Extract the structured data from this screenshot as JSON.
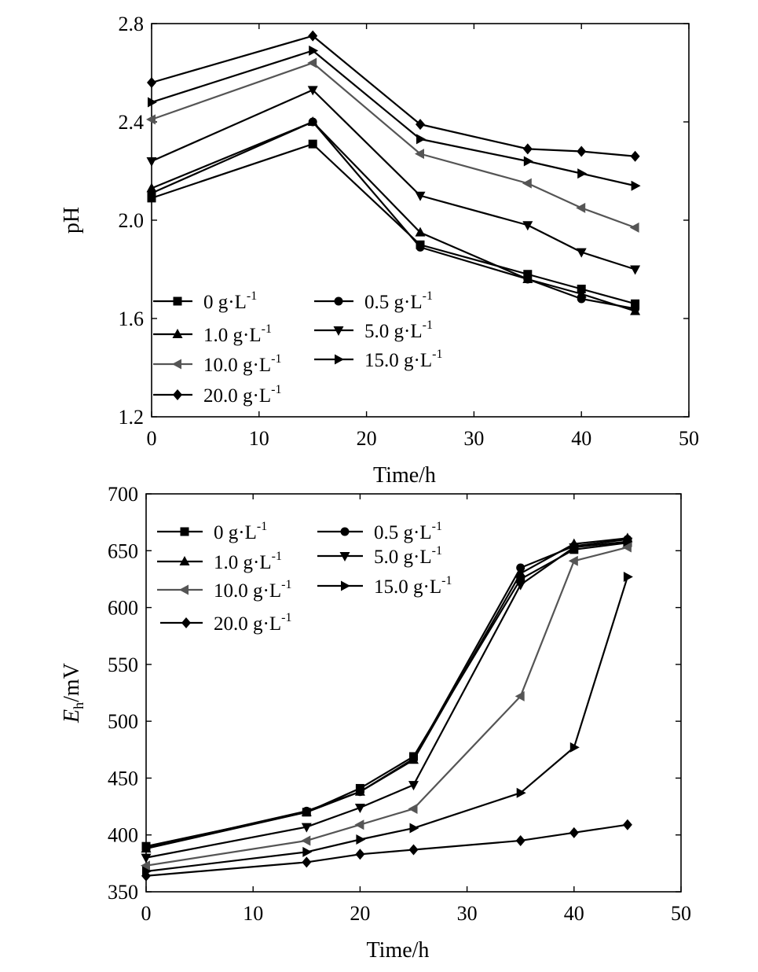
{
  "chart_data": [
    {
      "type": "line",
      "title": "",
      "xlabel": "Time/h",
      "ylabel": "pH",
      "xlim": [
        0,
        50
      ],
      "ylim": [
        1.2,
        2.8
      ],
      "xticks": [
        "0",
        "10",
        "20",
        "30",
        "40",
        "50"
      ],
      "yticks": [
        "1.2",
        "1.6",
        "2.0",
        "2.4",
        "2.8"
      ],
      "grid": false,
      "legend_position": "bottom-left",
      "x": [
        0,
        15,
        25,
        35,
        40,
        45
      ],
      "series": [
        {
          "name": "0 g·L",
          "marker": "square",
          "color": "#000000",
          "values": [
            2.09,
            2.31,
            1.9,
            1.78,
            1.72,
            1.66
          ]
        },
        {
          "name": "0.5 g·L",
          "marker": "circle",
          "color": "#000000",
          "values": [
            2.11,
            2.4,
            1.89,
            1.76,
            1.68,
            1.64
          ]
        },
        {
          "name": "1.0 g·L",
          "marker": "triangle-up",
          "color": "#000000",
          "values": [
            2.13,
            2.4,
            1.95,
            1.76,
            1.7,
            1.63
          ]
        },
        {
          "name": "5.0 g·L",
          "marker": "triangle-down",
          "color": "#000000",
          "values": [
            2.24,
            2.53,
            2.1,
            1.98,
            1.87,
            1.8
          ]
        },
        {
          "name": "10.0 g·L",
          "marker": "triangle-left",
          "color": "#555555",
          "values": [
            2.41,
            2.64,
            2.27,
            2.15,
            2.05,
            1.97
          ]
        },
        {
          "name": "15.0 g·L",
          "marker": "triangle-right",
          "color": "#000000",
          "values": [
            2.48,
            2.69,
            2.33,
            2.24,
            2.19,
            2.14
          ]
        },
        {
          "name": "20.0 g·L",
          "marker": "diamond",
          "color": "#000000",
          "values": [
            2.56,
            2.75,
            2.39,
            2.29,
            2.28,
            2.26
          ]
        }
      ],
      "legend_superscript": "-1"
    },
    {
      "type": "line",
      "title": "",
      "xlabel": "Time/h",
      "ylabel_main": "E",
      "ylabel_sub": "h",
      "ylabel_unit": "/mV",
      "xlim": [
        0,
        50
      ],
      "ylim": [
        350,
        700
      ],
      "xticks": [
        "0",
        "10",
        "20",
        "30",
        "40",
        "50"
      ],
      "yticks": [
        "350",
        "400",
        "450",
        "500",
        "550",
        "600",
        "650",
        "700"
      ],
      "grid": false,
      "legend_position": "top-left",
      "x": [
        0,
        15,
        20,
        25,
        35,
        40,
        45
      ],
      "series": [
        {
          "name": "0 g·L",
          "marker": "square",
          "color": "#000000",
          "values": [
            390,
            420,
            441,
            469,
            625,
            651,
            657
          ]
        },
        {
          "name": "0.5 g·L",
          "marker": "circle",
          "color": "#000000",
          "values": [
            389,
            421,
            438,
            467,
            635,
            654,
            660
          ]
        },
        {
          "name": "1.0 g·L",
          "marker": "triangle-up",
          "color": "#000000",
          "values": [
            388,
            420,
            438,
            466,
            630,
            656,
            661
          ]
        },
        {
          "name": "5.0 g·L",
          "marker": "triangle-down",
          "color": "#000000",
          "values": [
            380,
            407,
            424,
            444,
            620,
            653,
            658
          ]
        },
        {
          "name": "10.0 g·L",
          "marker": "triangle-left",
          "color": "#555555",
          "values": [
            373,
            395,
            409,
            423,
            522,
            641,
            653
          ]
        },
        {
          "name": "15.0 g·L",
          "marker": "triangle-right",
          "color": "#000000",
          "values": [
            368,
            385,
            396,
            406,
            437,
            477,
            627
          ]
        },
        {
          "name": "20.0 g·L",
          "marker": "diamond",
          "color": "#000000",
          "values": [
            364,
            376,
            383,
            387,
            395,
            402,
            409
          ]
        }
      ],
      "legend_superscript": "-1"
    }
  ]
}
